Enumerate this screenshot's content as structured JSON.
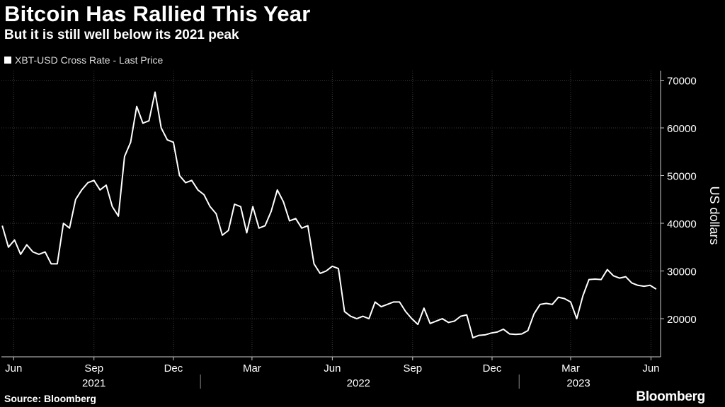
{
  "title": "Bitcoin Has Rallied This Year",
  "subtitle": "But it is still well below its 2021 peak",
  "source": "Source: Bloomberg",
  "brand": "Bloomberg",
  "colors": {
    "background": "#000000",
    "line": "#ffffff",
    "grid": "#3a3a3a",
    "text": "#ffffff"
  },
  "chart_data": {
    "type": "line",
    "legend": {
      "placement": "top-left"
    },
    "series": [
      {
        "name": "XBT-USD Cross Rate - Last Price",
        "x": [
          "2021-05-19",
          "2021-05-26",
          "2021-06-02",
          "2021-06-09",
          "2021-06-16",
          "2021-06-23",
          "2021-06-30",
          "2021-07-07",
          "2021-07-14",
          "2021-07-21",
          "2021-07-28",
          "2021-08-04",
          "2021-08-11",
          "2021-08-18",
          "2021-08-25",
          "2021-09-01",
          "2021-09-08",
          "2021-09-15",
          "2021-09-22",
          "2021-09-29",
          "2021-10-06",
          "2021-10-13",
          "2021-10-20",
          "2021-10-27",
          "2021-11-03",
          "2021-11-10",
          "2021-11-17",
          "2021-11-24",
          "2021-12-01",
          "2021-12-08",
          "2021-12-15",
          "2021-12-22",
          "2021-12-29",
          "2022-01-05",
          "2022-01-12",
          "2022-01-19",
          "2022-01-26",
          "2022-02-02",
          "2022-02-09",
          "2022-02-16",
          "2022-02-23",
          "2022-03-02",
          "2022-03-09",
          "2022-03-16",
          "2022-03-23",
          "2022-03-30",
          "2022-04-06",
          "2022-04-13",
          "2022-04-20",
          "2022-04-27",
          "2022-05-04",
          "2022-05-11",
          "2022-05-18",
          "2022-05-25",
          "2022-06-01",
          "2022-06-08",
          "2022-06-15",
          "2022-06-22",
          "2022-06-29",
          "2022-07-06",
          "2022-07-13",
          "2022-07-20",
          "2022-07-27",
          "2022-08-03",
          "2022-08-10",
          "2022-08-17",
          "2022-08-24",
          "2022-08-31",
          "2022-09-07",
          "2022-09-14",
          "2022-09-21",
          "2022-09-28",
          "2022-10-05",
          "2022-10-12",
          "2022-10-19",
          "2022-10-26",
          "2022-11-02",
          "2022-11-09",
          "2022-11-16",
          "2022-11-23",
          "2022-11-30",
          "2022-12-07",
          "2022-12-14",
          "2022-12-21",
          "2022-12-28",
          "2023-01-04",
          "2023-01-11",
          "2023-01-18",
          "2023-01-25",
          "2023-02-01",
          "2023-02-08",
          "2023-02-15",
          "2023-02-22",
          "2023-03-01",
          "2023-03-08",
          "2023-03-15",
          "2023-03-22",
          "2023-03-29",
          "2023-04-05",
          "2023-04-12",
          "2023-04-19",
          "2023-04-26",
          "2023-05-03",
          "2023-05-10",
          "2023-05-17",
          "2023-05-24",
          "2023-05-31",
          "2023-06-07"
        ],
        "y": [
          39500,
          35000,
          36500,
          33500,
          35500,
          34000,
          33500,
          34000,
          31500,
          31500,
          40000,
          39000,
          45000,
          47000,
          48500,
          49000,
          47000,
          48000,
          43500,
          41500,
          54000,
          57000,
          64500,
          61000,
          61500,
          67500,
          60000,
          57500,
          57000,
          50000,
          48500,
          49000,
          47000,
          46000,
          43500,
          42000,
          37500,
          38500,
          44000,
          43500,
          38000,
          43500,
          39000,
          39500,
          42500,
          47000,
          44500,
          40500,
          41000,
          39000,
          39500,
          31500,
          29500,
          30000,
          31000,
          30500,
          21500,
          20500,
          20000,
          20500,
          20000,
          23500,
          22500,
          23000,
          23500,
          23500,
          21500,
          20000,
          18800,
          22200,
          19000,
          19500,
          20000,
          19200,
          19500,
          20500,
          20800,
          16000,
          16500,
          16600,
          17000,
          17200,
          17800,
          16800,
          16700,
          16800,
          17500,
          21000,
          23000,
          23200,
          23000,
          24500,
          24200,
          23500,
          20000,
          24800,
          28200,
          28300,
          28200,
          30300,
          29000,
          28500,
          28800,
          27500,
          27000,
          26800,
          27000,
          26200
        ]
      }
    ],
    "yaxis": {
      "label": "US dollars",
      "min": 12000,
      "max": 72000,
      "ticks": [
        20000,
        30000,
        40000,
        50000,
        60000,
        70000
      ],
      "position": "right",
      "grid": true
    },
    "xaxis": {
      "min": "2021-05-18",
      "max": "2023-06-12",
      "grid": true,
      "ticks": [
        {
          "date": "2021-06-01",
          "label": "Jun"
        },
        {
          "date": "2021-09-01",
          "label": "Sep"
        },
        {
          "date": "2021-12-01",
          "label": "Dec"
        },
        {
          "date": "2022-03-01",
          "label": "Mar"
        },
        {
          "date": "2022-06-01",
          "label": "Jun"
        },
        {
          "date": "2022-09-01",
          "label": "Sep"
        },
        {
          "date": "2022-12-01",
          "label": "Dec"
        },
        {
          "date": "2023-03-01",
          "label": "Mar"
        },
        {
          "date": "2023-06-01",
          "label": "Jun"
        }
      ],
      "years": [
        {
          "label": "2021",
          "center": "2021-09-01"
        },
        {
          "label": "2022",
          "center": "2022-07-01"
        },
        {
          "label": "2023",
          "center": "2023-03-10"
        }
      ],
      "year_dividers": [
        "2022-01-01",
        "2023-01-01"
      ]
    }
  }
}
